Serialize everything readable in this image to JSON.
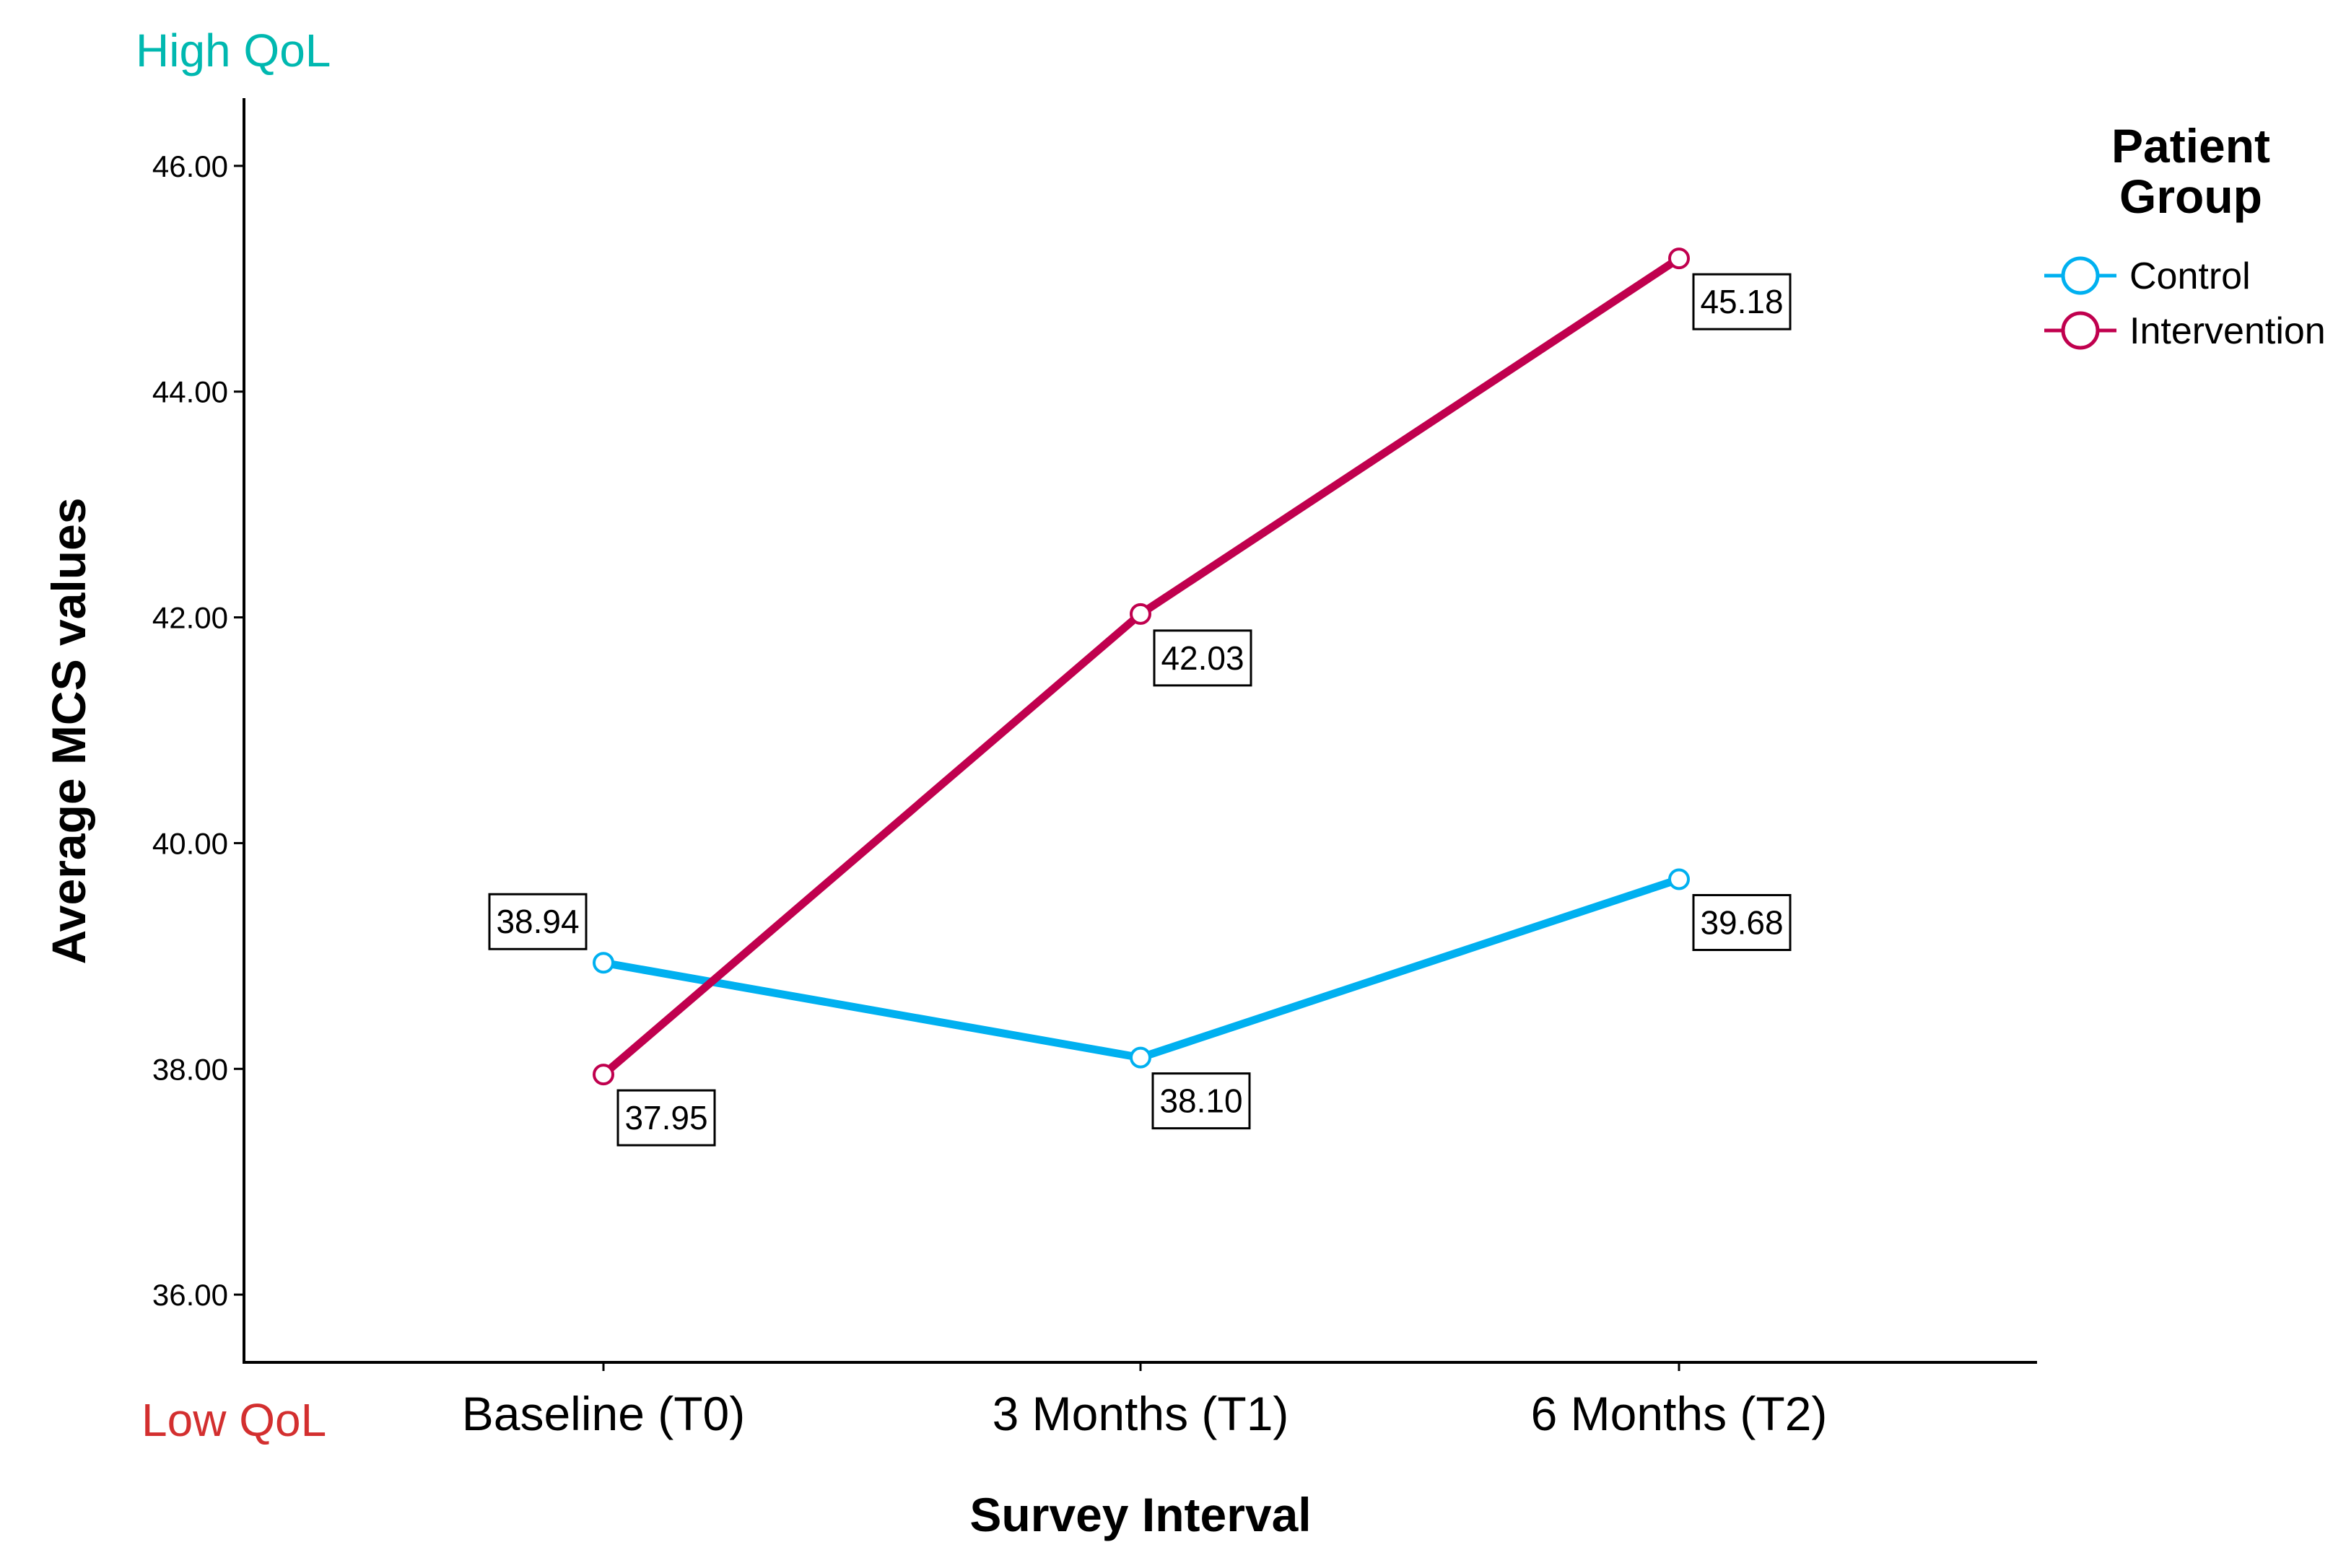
{
  "chart_data": {
    "type": "line",
    "categories": [
      "Baseline (T0)",
      "3 Months (T1)",
      "6 Months (T2)"
    ],
    "series": [
      {
        "name": "Control",
        "values": [
          38.94,
          38.1,
          39.68
        ],
        "color": "#00B0F0"
      },
      {
        "name": "Intervention",
        "values": [
          37.95,
          42.03,
          45.18
        ],
        "color": "#C0004E"
      }
    ],
    "data_labels": {
      "Control": [
        "38.94",
        "38.10",
        "39.68"
      ],
      "Intervention": [
        "37.95",
        "42.03",
        "45.18"
      ]
    },
    "title": "",
    "xlabel": "Survey Interval",
    "ylabel": "Average MCS values",
    "ylim": [
      35.4,
      46.6
    ],
    "yticks": [
      "36.00",
      "38.00",
      "40.00",
      "42.00",
      "44.00",
      "46.00"
    ],
    "grid": false,
    "legend": {
      "title": "Patient Group",
      "title_lines": [
        "Patient",
        "Group"
      ],
      "placement": "right-top"
    },
    "annotations": {
      "high": {
        "text": "High QoL",
        "color": "#00B8B0"
      },
      "low": {
        "text": "Low QoL",
        "color": "#D32F2F"
      }
    }
  }
}
